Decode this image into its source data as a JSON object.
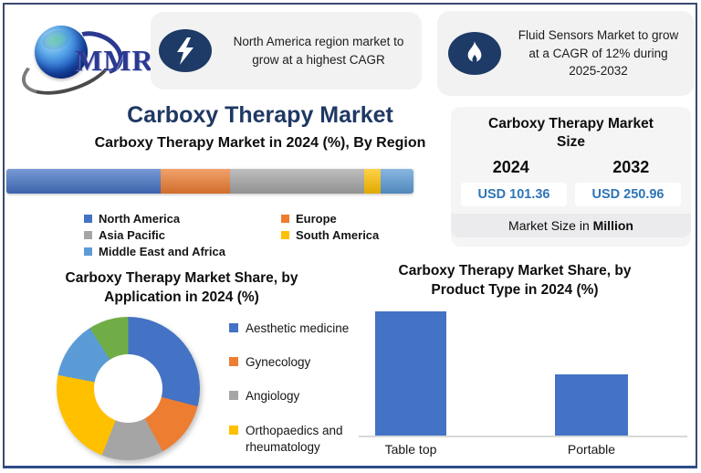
{
  "brand": {
    "logo_text": "MMR"
  },
  "badges": [
    {
      "icon": "lightning-icon",
      "text": "North America region market to grow at a highest CAGR"
    },
    {
      "icon": "flame-icon",
      "text": "Fluid Sensors Market to grow at a CAGR of 12% during 2025-2032"
    }
  ],
  "header": {
    "title": "Carboxy Therapy Market"
  },
  "market_size_panel": {
    "title": "Carboxy Therapy Market Size",
    "columns": [
      {
        "year": "2024",
        "value": "USD 101.36"
      },
      {
        "year": "2032",
        "value": "USD 250.96"
      }
    ],
    "footer_prefix": "Market Size in ",
    "footer_bold": "Million",
    "value_color": "#2e75b6"
  },
  "chart_data": [
    {
      "type": "bar",
      "variant": "stacked-horizontal",
      "title": "Carboxy Therapy Market in 2024 (%), By Region",
      "categories": [
        "North America",
        "Europe",
        "Asia Pacific",
        "South America",
        "Middle East and Africa"
      ],
      "values": [
        38,
        17,
        33,
        4,
        8
      ],
      "colors": [
        "#4472C4",
        "#ED7D31",
        "#A5A5A5",
        "#FFC000",
        "#5B9BD5"
      ],
      "legend_position": "below",
      "legend_columns": [
        [
          0,
          2,
          4
        ],
        [
          1,
          3
        ]
      ]
    },
    {
      "type": "pie",
      "variant": "donut",
      "title": "Carboxy Therapy Market Share, by Application in 2024 (%)",
      "segments": [
        {
          "label": "Aesthetic medicine",
          "value": 29,
          "color": "#4472C4"
        },
        {
          "label": "Gynecology",
          "value": 13,
          "color": "#ED7D31"
        },
        {
          "label": "Angiology",
          "value": 14,
          "color": "#A5A5A5"
        },
        {
          "label": "Orthopaedics and rheumatology",
          "value": 22,
          "color": "#FFC000"
        },
        {
          "label": "",
          "value": 13,
          "color": "#5B9BD5"
        },
        {
          "label": "",
          "value": 9,
          "color": "#70AD47"
        }
      ],
      "legend_labels": [
        "Aesthetic medicine",
        "Gynecology",
        "Angiology",
        "Orthopaedics and rheumatology"
      ],
      "legend_position": "right"
    },
    {
      "type": "bar",
      "title": "Carboxy Therapy  Market Share, by Product Type in 2024 (%)",
      "categories": [
        "Table top",
        "Portable"
      ],
      "values": [
        67,
        33
      ],
      "bar_color": "#4472C4",
      "ylim": [
        0,
        70
      ],
      "grid": false
    }
  ]
}
